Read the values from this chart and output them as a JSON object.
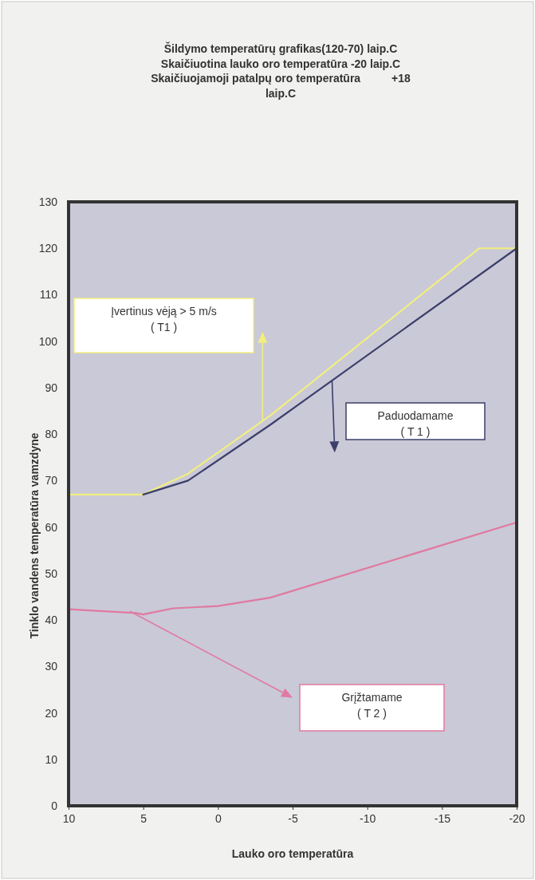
{
  "chart_data": {
    "type": "line",
    "title": "Šildymo temperatūrų grafikas(120-70) laip.C\nSkaičiuotina lauko oro temperatūra -20 laip.C\nSkaičiuojamoji patalpų oro temperatūra          +18\nlaip.C",
    "xlabel": "Lauko oro temperatūra",
    "ylabel": "Tinklo vandens temperatūra vamzdyne",
    "xlim": [
      10,
      -20
    ],
    "xticks": [
      10,
      5,
      0,
      -5,
      -10,
      -15,
      -20
    ],
    "ylim": [
      0,
      130
    ],
    "yticks": [
      0,
      10,
      20,
      30,
      40,
      50,
      60,
      70,
      80,
      90,
      100,
      110,
      120,
      130
    ],
    "grid": false,
    "marker": "none",
    "line_style": "solid",
    "series": [
      {
        "color": "#f2ee80",
        "x": [
          10,
          5,
          2,
          -3.5,
          -17.5,
          -20
        ],
        "values": [
          67,
          67,
          71.5,
          84,
          120,
          120
        ]
      },
      {
        "color": "#3c3f6b",
        "x": [
          5,
          2,
          -3.5,
          -20
        ],
        "values": [
          67,
          70,
          82,
          120
        ]
      },
      {
        "color": "#e07aa0",
        "x": [
          10,
          5.5,
          5,
          3,
          0,
          -3.5,
          -20
        ],
        "values": [
          42.3,
          41.5,
          41.2,
          42.5,
          43,
          44.8,
          61
        ]
      }
    ],
    "annotations": [
      "Įvertinus vėją > 5 m/s\n( T1 )",
      "Paduodamame\n( T 1 )",
      "Grįžtamame\n( T 2 )"
    ]
  }
}
